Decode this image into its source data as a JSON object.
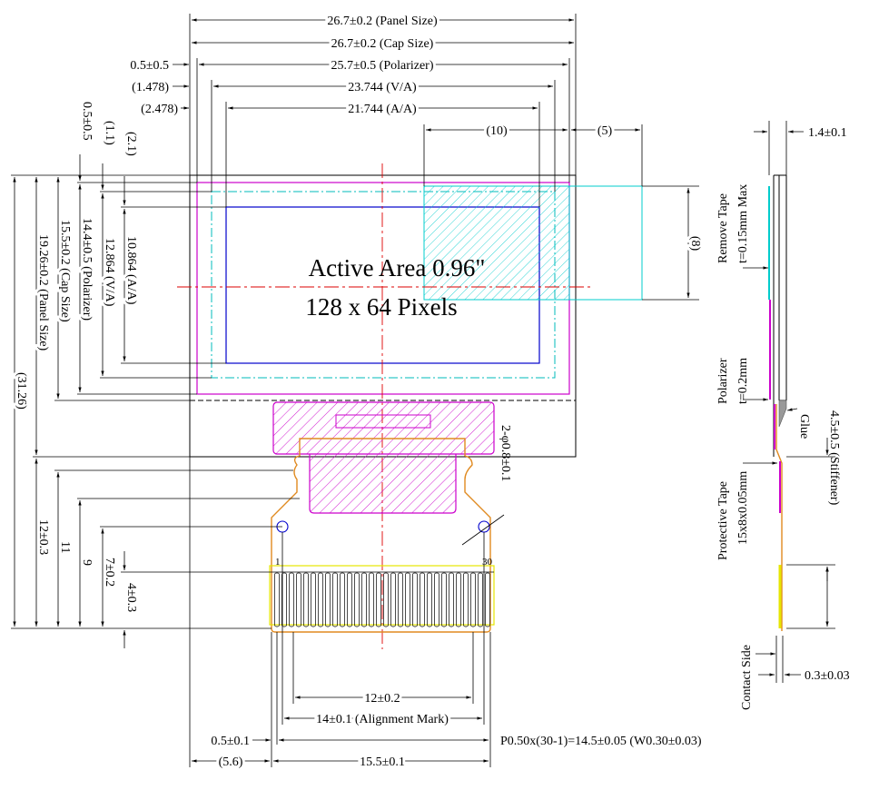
{
  "title": {
    "line1": "Active Area 0.96\"",
    "line2": "128 x 64 Pixels"
  },
  "top_dims": {
    "panel": "26.7±0.2 (Panel Size)",
    "cap": "26.7±0.2 (Cap Size)",
    "pol_offset": "0.5±0.5",
    "polarizer": "25.7±0.5 (Polarizer)",
    "va_offset": "(1.478)",
    "va": "23.744 (V/A)",
    "aa_offset": "(2.478)",
    "aa": "21.744 (A/A)",
    "d10": "(10)",
    "d5": "(5)",
    "d8": "(8)"
  },
  "left_dims": {
    "pol_v": "0.5±0.5",
    "va_v": "(1.1)",
    "aa_v": "(2.1)",
    "aa_h": "10.864 (A/A)",
    "va_h": "12.864 (V/A)",
    "pol_h": "14.4±0.5 (Polarizer)",
    "cap_h": "15.5±0.2 (Cap Size)",
    "panel_h": "19.26±0.2 (Panel Size)",
    "total_h": "(31.26)",
    "d12": "12±0.3",
    "d11": "11",
    "d9": "9",
    "d7": "7±0.2",
    "d4": "4±0.3"
  },
  "fpc": {
    "hole": "2-φ0.8±0.1",
    "pin_first": "1",
    "pin_last": "30"
  },
  "bottom_dims": {
    "d12": "12±0.2",
    "align": "14±0.1 (Alignment Mark)",
    "d05": "0.5±0.1",
    "pitch": "P0.50x(30-1)=14.5±0.05 (W0.30±0.03)",
    "d56": "(5.6)",
    "d155": "15.5±0.1"
  },
  "side": {
    "thick": "1.4±0.1",
    "remove1": "Remove Tape",
    "remove2": "t=0.15mm Max",
    "pol1": "Polarizer",
    "pol2": "t=0.2mm",
    "glue": "Glue",
    "stiff": "4.5±0.5 (Stiffener)",
    "prot1": "Protective Tape",
    "prot2": "15x8x0.05mm",
    "contact": "Contact Side",
    "d03": "0.3±0.03"
  },
  "colors": {
    "magenta": "#cc00cc",
    "cyan": "#00cccc",
    "blue": "#0000cc",
    "red": "#dd0000",
    "orange": "#e08a20",
    "yellow": "#e6e600"
  }
}
